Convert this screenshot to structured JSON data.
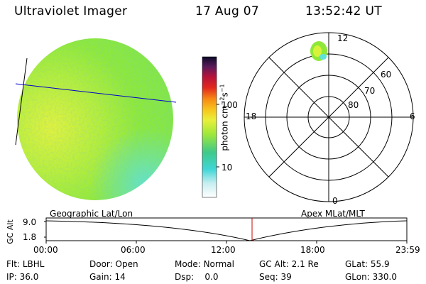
{
  "header": {
    "title": "Ultraviolet Imager",
    "date": "17 Aug 07",
    "time": "13:52:42 UT"
  },
  "colorbar": {
    "unit_main": "photon cm",
    "unit_sup1": "−2",
    "unit_mid": "s",
    "unit_sup2": "−1",
    "ticks": [
      "100",
      "10"
    ]
  },
  "polar": {
    "clock_labels": {
      "top": "12",
      "left": "18",
      "right": "6",
      "bottom": "0"
    },
    "lat_labels": [
      "60",
      "70",
      "80"
    ]
  },
  "altitude_plot": {
    "ylabel": "GC Alt",
    "yticks": [
      "9.0",
      "1.8"
    ],
    "left_title": "Geographic Lat/Lon",
    "right_title": "Apex MLat/MLT",
    "xticks": [
      "00:00",
      "06:00",
      "12:00",
      "18:00",
      "23:59"
    ],
    "marker_time": "13:52:42"
  },
  "info": {
    "row1": [
      {
        "key": "Flt:",
        "value": "LBHL"
      },
      {
        "key": "Door:",
        "value": "Open"
      },
      {
        "key": "Mode:",
        "value": "Normal"
      },
      {
        "key": "GC Alt:",
        "value": "2.1 Re"
      },
      {
        "key": "GLat:",
        "value": "55.9"
      }
    ],
    "row2": [
      {
        "key": "IP:",
        "value": "36.0"
      },
      {
        "key": "Gain:",
        "value": "14"
      },
      {
        "key": "Dsp:",
        "value": "0.0"
      },
      {
        "key": "Seq:",
        "value": "39"
      },
      {
        "key": "GLon:",
        "value": "330.0"
      }
    ]
  },
  "colors": {
    "disk_green": "#8ee83a",
    "disk_yellow": "#d8f23a",
    "disk_cyan": "#5fe2d8",
    "orbit_line": "#0000cc",
    "marker": "#cc0000"
  }
}
